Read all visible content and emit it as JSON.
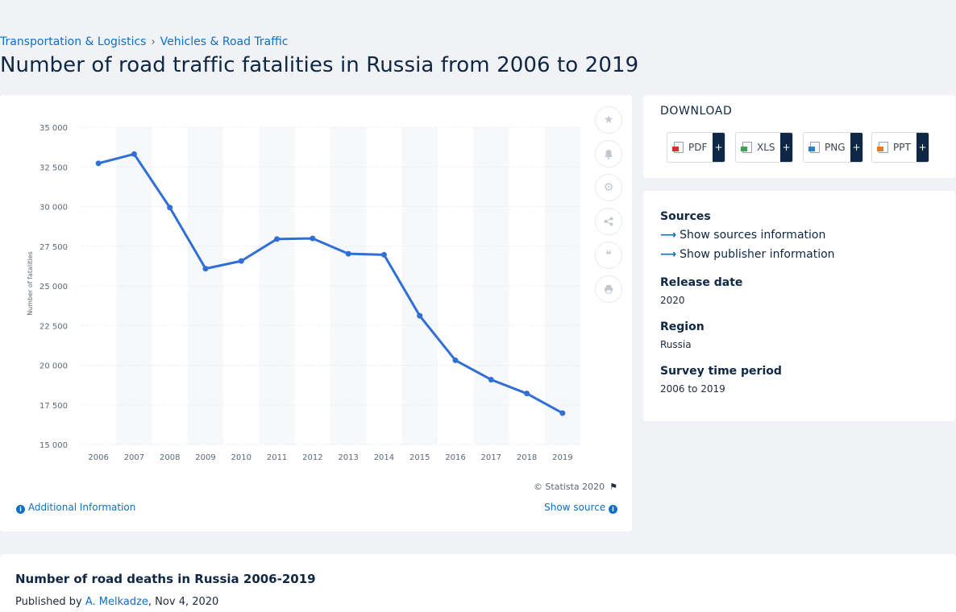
{
  "breadcrumb": [
    {
      "label": "Transportation & Logistics"
    },
    {
      "label": "Vehicles & Road Traffic"
    }
  ],
  "page_title": "Number of road traffic fatalities in Russia from 2006 to 2019",
  "chart_tools": [
    "star-icon",
    "bell-icon",
    "gear-icon",
    "share-icon",
    "quote-icon",
    "print-icon"
  ],
  "chart_footer": {
    "copyright": "© Statista 2020",
    "additional_info": "Additional Information",
    "show_source": "Show source"
  },
  "download": {
    "title": "DOWNLOAD",
    "buttons": [
      {
        "label": "PDF",
        "color": "#d9302c"
      },
      {
        "label": "XLS",
        "color": "#3aa650"
      },
      {
        "label": "PNG",
        "color": "#2f7fd1"
      },
      {
        "label": "PPT",
        "color": "#e4792b"
      }
    ],
    "plus": "+"
  },
  "sources": {
    "heading": "Sources",
    "show_sources": "Show sources information",
    "show_publisher": "Show publisher information",
    "release_label": "Release date",
    "release_value": "2020",
    "region_label": "Region",
    "region_value": "Russia",
    "period_label": "Survey time period",
    "period_value": "2006 to 2019"
  },
  "bottom": {
    "title": "Number of road deaths in Russia 2006-2019",
    "published_prefix": "Published by ",
    "author": "A. Melkadze",
    "date": ", Nov 4, 2020"
  },
  "colors": {
    "line": "#2f6fd6",
    "link": "#0f6fc6",
    "title": "#0d2744"
  },
  "chart_data": {
    "type": "line",
    "title": "",
    "xlabel": "",
    "ylabel": "Number of fatalities",
    "x": [
      "2006",
      "2007",
      "2008",
      "2009",
      "2010",
      "2011",
      "2012",
      "2013",
      "2014",
      "2015",
      "2016",
      "2017",
      "2018",
      "2019"
    ],
    "series": [
      {
        "values": [
          32724,
          33308,
          29936,
          26084,
          26567,
          27953,
          27991,
          27025,
          26963,
          23114,
          20308,
          19088,
          18214,
          16981
        ]
      }
    ],
    "ylim": [
      15000,
      35000
    ],
    "yticks": [
      "15 000",
      "17 500",
      "20 000",
      "22 500",
      "25 000",
      "27 500",
      "30 000",
      "32 500",
      "35 000"
    ],
    "grid": true,
    "alternating_column_bands": true
  }
}
